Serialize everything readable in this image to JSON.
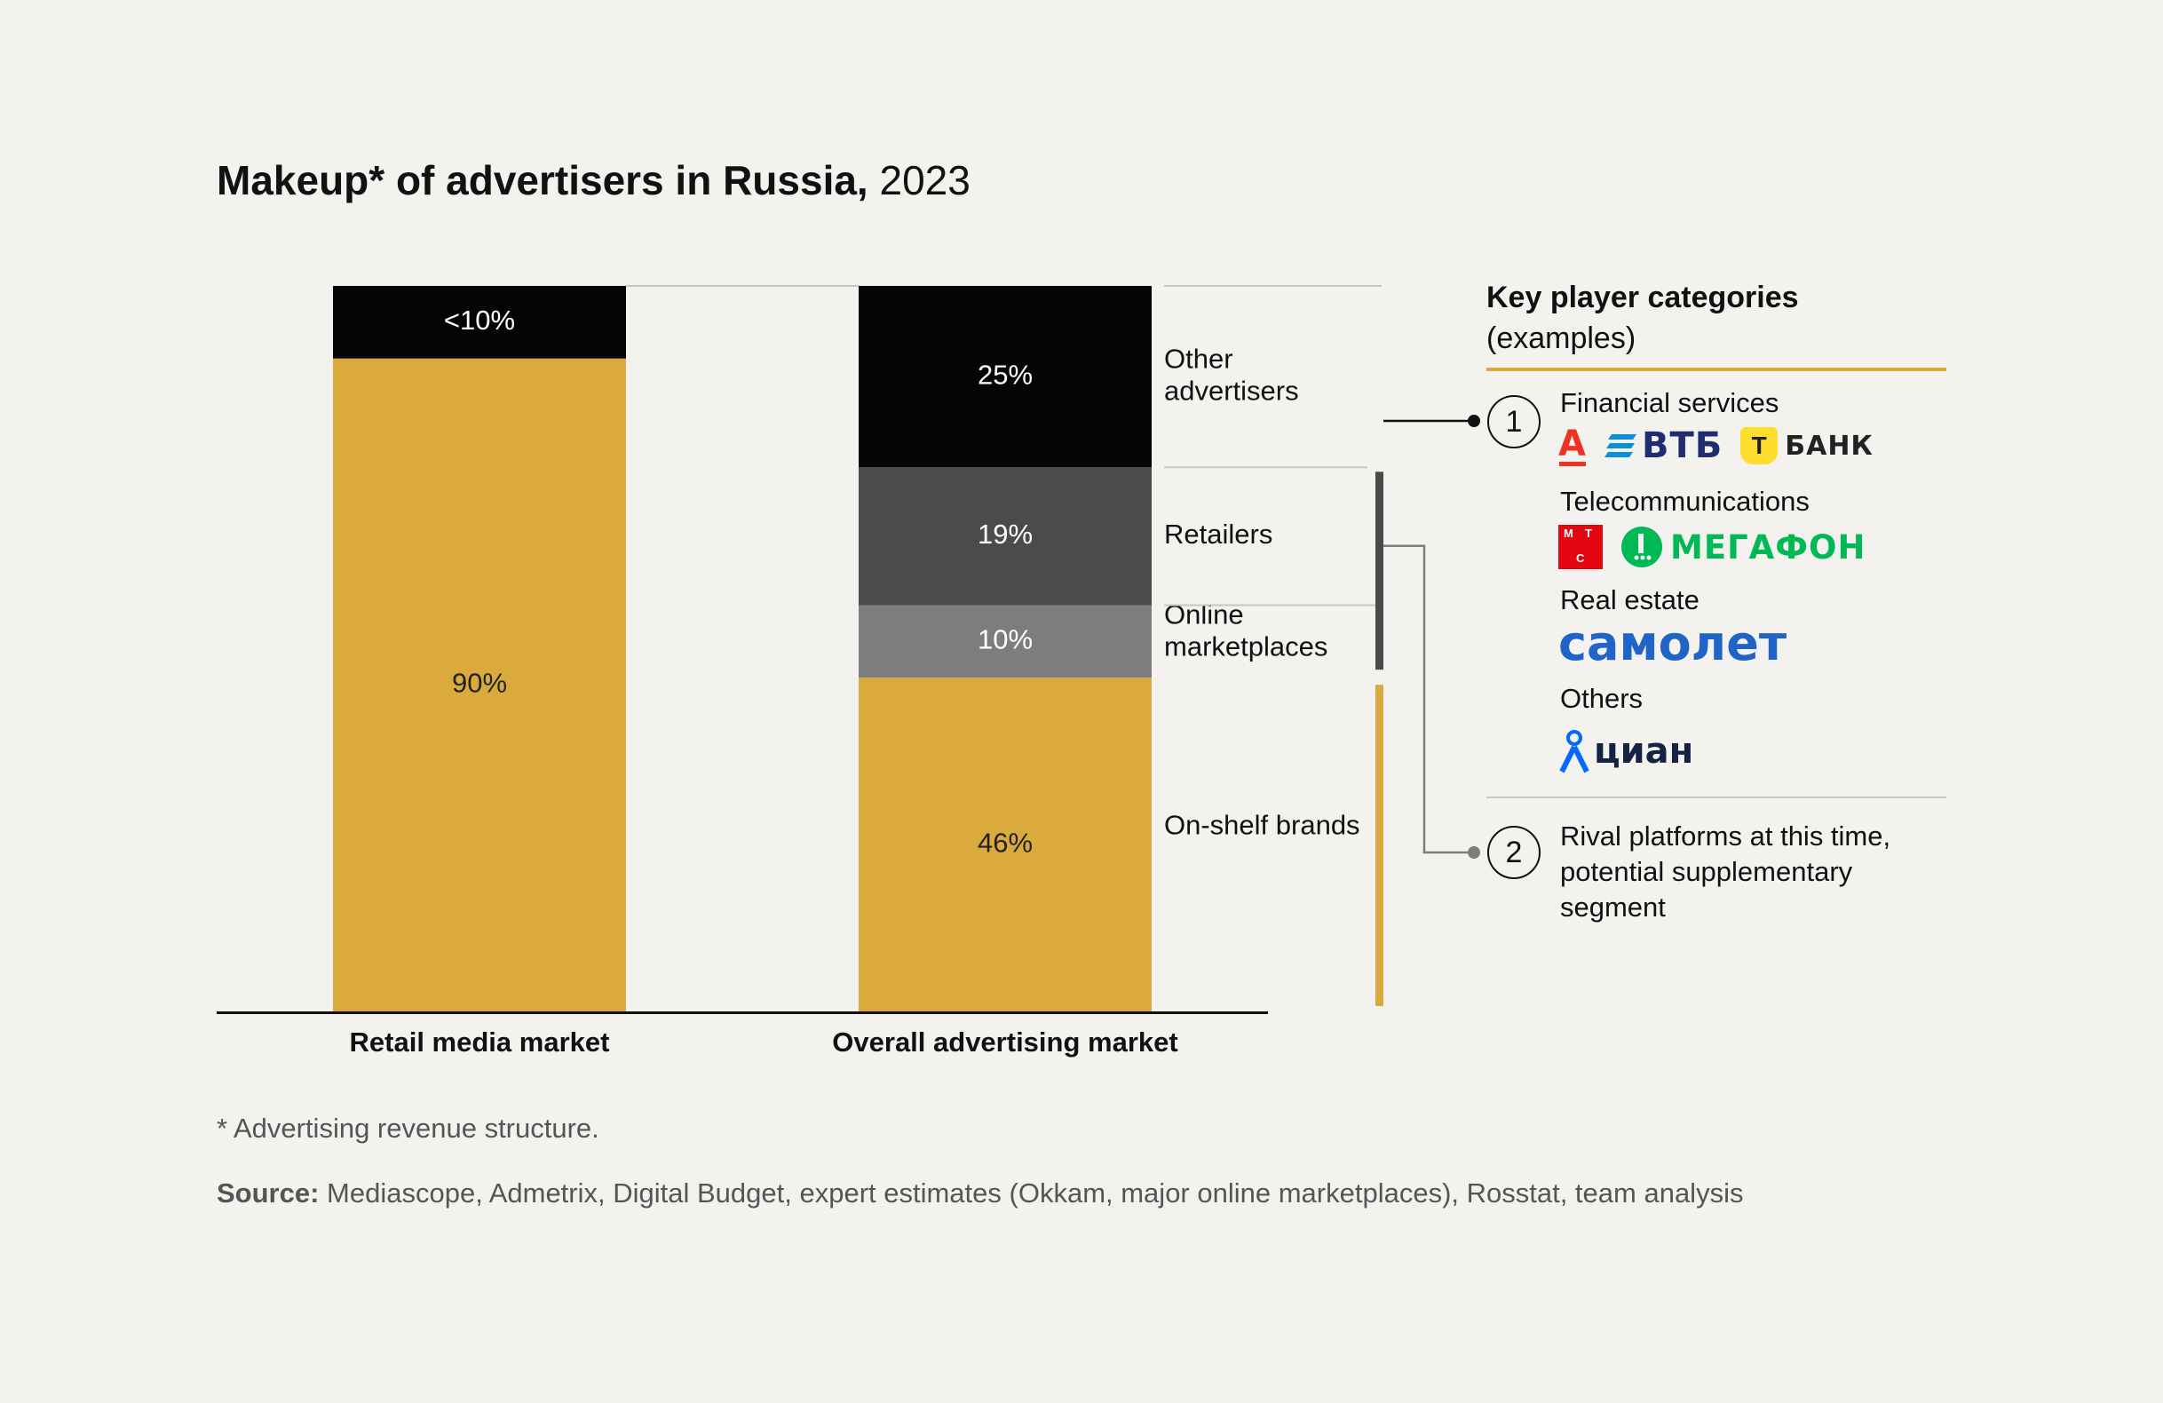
{
  "title": {
    "main": "Makeup* of advertisers in Russia,",
    "year": "2023"
  },
  "chart_data": {
    "type": "stacked_bar",
    "title": "Makeup* of advertisers in Russia, 2023",
    "categories": [
      "Retail media market",
      "Overall advertising market"
    ],
    "bars": [
      {
        "category": "Retail media market",
        "segments": [
          {
            "value": 90,
            "label": "90%",
            "color": "#dbaa3c"
          },
          {
            "value": 10,
            "label": "<10%",
            "color": "#050505"
          }
        ]
      },
      {
        "category": "Overall advertising market",
        "segments": [
          {
            "value": 46,
            "label": "46%",
            "name": "On-shelf brands",
            "color": "#dbaa3c"
          },
          {
            "value": 10,
            "label": "10%",
            "name": "Online marketplaces",
            "color": "#7d7d7d"
          },
          {
            "value": 19,
            "label": "19%",
            "name": "Retailers",
            "color": "#4b4b4b"
          },
          {
            "value": 25,
            "label": "25%",
            "name": "Other advertisers",
            "color": "#050505"
          }
        ]
      }
    ],
    "segment_names": [
      "Other advertisers",
      "Retailers",
      "Online marketplaces",
      "On-shelf brands"
    ]
  },
  "key_players": {
    "title_line1": "Key player categories",
    "title_line2": "(examples)",
    "marker1": "1",
    "marker2": "2",
    "categories": [
      {
        "label": "Financial services",
        "logos": [
          "А",
          "ВТБ",
          "Т",
          "БАНК"
        ]
      },
      {
        "label": "Telecommunications",
        "logos": [
          "М",
          "Т",
          "С",
          "МЕГАФОН"
        ]
      },
      {
        "label": "Real estate",
        "logos": [
          "самолет"
        ]
      },
      {
        "label": "Others",
        "logos": [
          "циан"
        ]
      }
    ],
    "rival_text": "Rival platforms at this time, potential supplementary segment"
  },
  "footnote": "* Advertising revenue structure.",
  "source": {
    "label": "Source:",
    "text": " Mediascope, Admetrix, Digital Budget, expert estimates (Okkam, major online marketplaces), Rosstat, team analysis"
  },
  "colors": {
    "gold": "#dbaa3c",
    "black": "#050505",
    "dark_gray": "#4b4b4b",
    "mid_gray": "#7d7d7d",
    "background": "#f3f2ef"
  }
}
